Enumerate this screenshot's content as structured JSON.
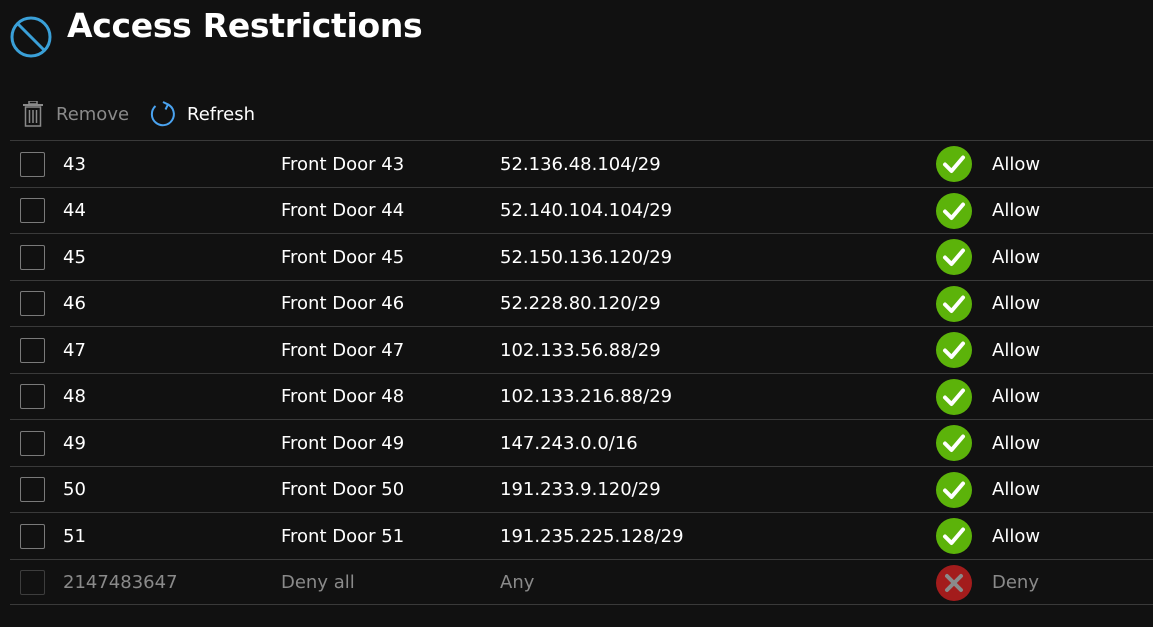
{
  "header": {
    "title": "Access Restrictions",
    "icon": "blocked-icon",
    "icon_color": "#3aa0d8"
  },
  "toolbar": {
    "remove_label": "Remove",
    "refresh_label": "Refresh"
  },
  "colors": {
    "allow": "#5cb30a",
    "deny": "#a31c1c",
    "refresh_icon": "#4aa3f0"
  },
  "rules": [
    {
      "priority": "43",
      "name": "Front Door 43",
      "ip": "52.136.48.104/29",
      "action": "Allow"
    },
    {
      "priority": "44",
      "name": "Front Door 44",
      "ip": "52.140.104.104/29",
      "action": "Allow"
    },
    {
      "priority": "45",
      "name": "Front Door 45",
      "ip": "52.150.136.120/29",
      "action": "Allow"
    },
    {
      "priority": "46",
      "name": "Front Door 46",
      "ip": "52.228.80.120/29",
      "action": "Allow"
    },
    {
      "priority": "47",
      "name": "Front Door 47",
      "ip": "102.133.56.88/29",
      "action": "Allow"
    },
    {
      "priority": "48",
      "name": "Front Door 48",
      "ip": "102.133.216.88/29",
      "action": "Allow"
    },
    {
      "priority": "49",
      "name": "Front Door 49",
      "ip": "147.243.0.0/16",
      "action": "Allow"
    },
    {
      "priority": "50",
      "name": "Front Door 50",
      "ip": "191.233.9.120/29",
      "action": "Allow"
    },
    {
      "priority": "51",
      "name": "Front Door 51",
      "ip": "191.235.225.128/29",
      "action": "Allow"
    },
    {
      "priority": "2147483647",
      "name": "Deny all",
      "ip": "Any",
      "action": "Deny"
    }
  ]
}
